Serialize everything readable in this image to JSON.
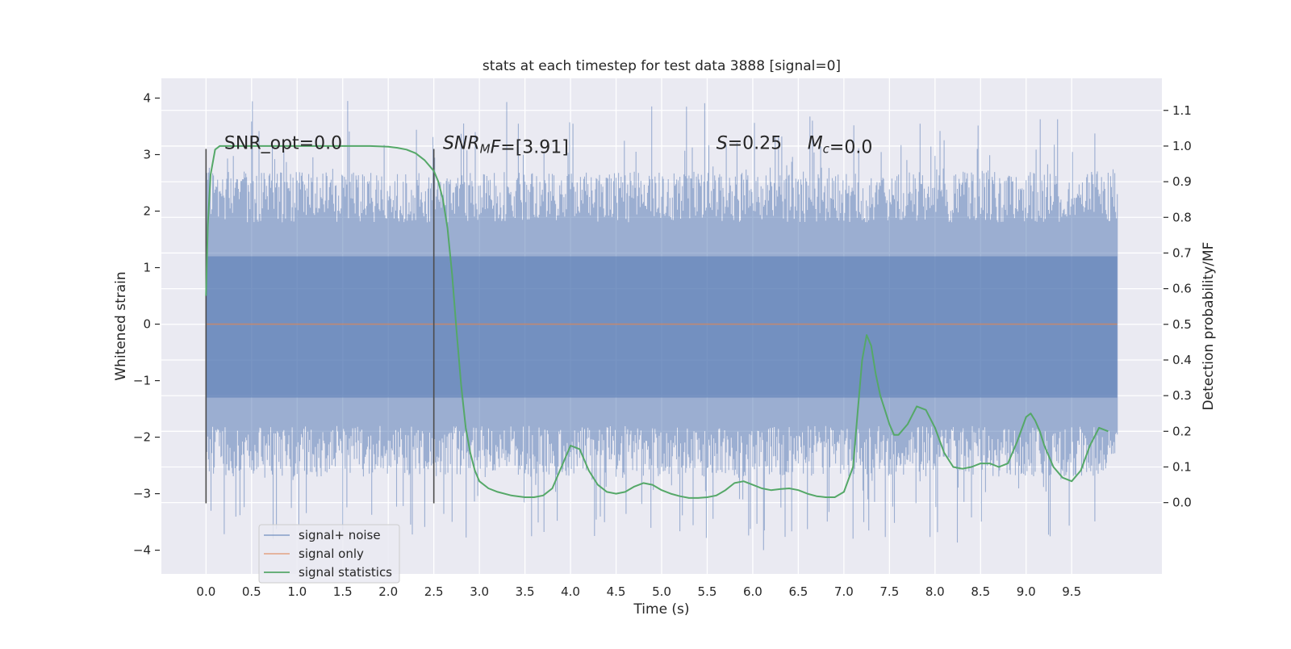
{
  "chart_data": {
    "type": "line",
    "title": "stats at each timestep for test data 3888 [signal=0]",
    "xlabel": "Time (s)",
    "ylabel": "Whitened strain",
    "ylabel_right": "Detection probability/MF",
    "xlim": [
      -0.49,
      10.49
    ],
    "ylim": [
      -4.42,
      4.35
    ],
    "ylim_right": [
      -0.2,
      1.19
    ],
    "xticks": [
      0.0,
      0.5,
      1.0,
      1.5,
      2.0,
      2.5,
      3.0,
      3.5,
      4.0,
      4.5,
      5.0,
      5.5,
      6.0,
      6.5,
      7.0,
      7.5,
      8.0,
      8.5,
      9.0,
      9.5
    ],
    "xtick_labels": [
      "0.0",
      "0.5",
      "1.0",
      "1.5",
      "2.0",
      "2.5",
      "3.0",
      "3.5",
      "4.0",
      "4.5",
      "5.0",
      "5.5",
      "6.0",
      "6.5",
      "7.0",
      "7.5",
      "8.0",
      "8.5",
      "9.0",
      "9.5"
    ],
    "yticks": [
      -4,
      -3,
      -2,
      -1,
      0,
      1,
      2,
      3,
      4
    ],
    "ytick_labels": [
      "−4",
      "−3",
      "−2",
      "−1",
      "0",
      "1",
      "2",
      "3",
      "4"
    ],
    "yticks_right": [
      0.0,
      0.1,
      0.2,
      0.3,
      0.4,
      0.5,
      0.6,
      0.7,
      0.8,
      0.9,
      1.0,
      1.1
    ],
    "ytick_right_labels": [
      "0.0",
      "0.1",
      "0.2",
      "0.3",
      "0.4",
      "0.5",
      "0.6",
      "0.7",
      "0.8",
      "0.9",
      "1.0",
      "1.1"
    ],
    "grid": true,
    "legend_position": "lower-left",
    "series": [
      {
        "name": "signal+ noise",
        "axis": "left",
        "color": "#4c72b0",
        "kind": "noise-band",
        "x_range": [
          0.0,
          10.0
        ],
        "core_range": [
          -1.3,
          1.2
        ],
        "typical_range": [
          -2.6,
          2.6
        ],
        "extreme_range": [
          -4.05,
          3.95
        ]
      },
      {
        "name": "signal only",
        "axis": "left",
        "color": "#dd8452",
        "x": [
          0.0,
          10.0
        ],
        "y": [
          0.0,
          0.0
        ]
      },
      {
        "name": "signal statistics",
        "axis": "right",
        "color": "#55a868",
        "x": [
          0.0,
          0.02,
          0.05,
          0.1,
          0.15,
          0.3,
          0.6,
          1.0,
          1.5,
          1.8,
          2.0,
          2.1,
          2.2,
          2.3,
          2.4,
          2.5,
          2.55,
          2.6,
          2.65,
          2.7,
          2.75,
          2.8,
          2.85,
          2.9,
          2.95,
          3.0,
          3.1,
          3.2,
          3.35,
          3.5,
          3.6,
          3.7,
          3.8,
          3.9,
          4.0,
          4.1,
          4.2,
          4.3,
          4.4,
          4.5,
          4.6,
          4.7,
          4.8,
          4.9,
          5.0,
          5.1,
          5.2,
          5.3,
          5.4,
          5.5,
          5.6,
          5.7,
          5.8,
          5.9,
          6.0,
          6.1,
          6.2,
          6.3,
          6.4,
          6.5,
          6.6,
          6.7,
          6.8,
          6.9,
          7.0,
          7.1,
          7.15,
          7.2,
          7.25,
          7.3,
          7.35,
          7.4,
          7.45,
          7.5,
          7.55,
          7.6,
          7.7,
          7.8,
          7.9,
          8.0,
          8.1,
          8.2,
          8.3,
          8.4,
          8.5,
          8.6,
          8.7,
          8.8,
          8.9,
          9.0,
          9.05,
          9.1,
          9.15,
          9.2,
          9.3,
          9.4,
          9.5,
          9.6,
          9.7,
          9.8,
          9.9
        ],
        "y": [
          0.58,
          0.78,
          0.92,
          0.99,
          1.0,
          1.0,
          1.0,
          1.0,
          1.0,
          1.0,
          0.998,
          0.995,
          0.99,
          0.98,
          0.96,
          0.93,
          0.9,
          0.85,
          0.77,
          0.64,
          0.48,
          0.33,
          0.21,
          0.14,
          0.09,
          0.06,
          0.04,
          0.03,
          0.02,
          0.015,
          0.015,
          0.02,
          0.04,
          0.1,
          0.16,
          0.15,
          0.09,
          0.05,
          0.03,
          0.025,
          0.03,
          0.045,
          0.055,
          0.05,
          0.035,
          0.025,
          0.018,
          0.013,
          0.013,
          0.015,
          0.02,
          0.035,
          0.055,
          0.06,
          0.05,
          0.04,
          0.035,
          0.038,
          0.04,
          0.035,
          0.025,
          0.018,
          0.015,
          0.015,
          0.03,
          0.1,
          0.25,
          0.4,
          0.47,
          0.44,
          0.36,
          0.3,
          0.26,
          0.22,
          0.19,
          0.19,
          0.22,
          0.27,
          0.26,
          0.21,
          0.14,
          0.1,
          0.095,
          0.1,
          0.11,
          0.11,
          0.1,
          0.11,
          0.17,
          0.24,
          0.25,
          0.23,
          0.2,
          0.16,
          0.1,
          0.07,
          0.06,
          0.09,
          0.16,
          0.21,
          0.2
        ]
      }
    ],
    "vlines": [
      {
        "x": 0.0,
        "y": [
          -3.17,
          3.1
        ],
        "color": "#4d4d4d"
      },
      {
        "x": 2.5,
        "y": [
          -3.17,
          3.1
        ],
        "color": "#4d4d4d"
      }
    ],
    "annotations": [
      {
        "x": 0.2,
        "y": 3.1,
        "parts": [
          {
            "t": "SNR_opt=0.0",
            "i": false
          }
        ]
      },
      {
        "x": 2.6,
        "y": 3.1,
        "parts": [
          {
            "t": "SNR",
            "i": true
          },
          {
            "t": "M",
            "i": true,
            "sub": true
          },
          {
            "t": "F",
            "i": true
          },
          {
            "t": "=[3.91]",
            "i": false
          }
        ]
      },
      {
        "x": 5.6,
        "y": 3.1,
        "parts": [
          {
            "t": "S",
            "i": true
          },
          {
            "t": "=0.25",
            "i": false
          }
        ]
      },
      {
        "x": 6.6,
        "y": 3.1,
        "parts": [
          {
            "t": "M",
            "i": true
          },
          {
            "t": "c",
            "i": true,
            "sub": true
          },
          {
            "t": "=0.0",
            "i": false
          }
        ]
      }
    ]
  }
}
